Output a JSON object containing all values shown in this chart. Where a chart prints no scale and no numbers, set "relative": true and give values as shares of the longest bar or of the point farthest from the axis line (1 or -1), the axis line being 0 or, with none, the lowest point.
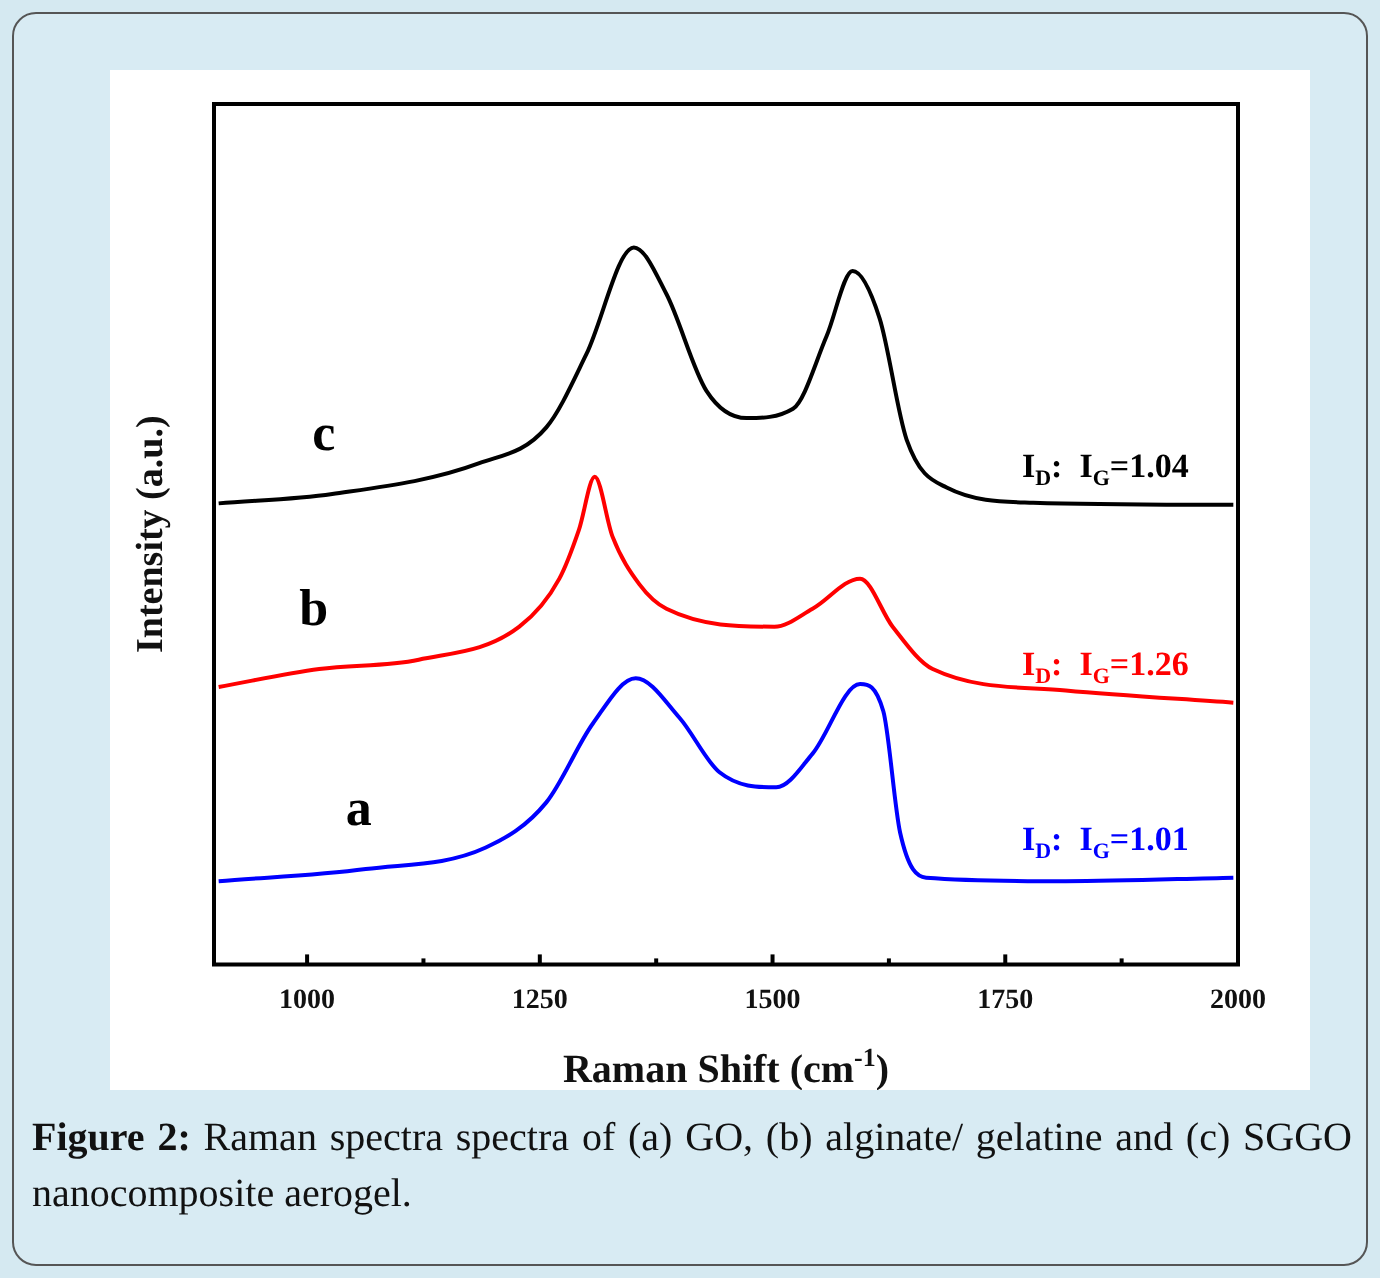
{
  "chart_data": {
    "type": "line",
    "relative": true,
    "xlabel": "Raman Shift (cm$^{-1}$)",
    "ylabel": "Intensity (a.u.)",
    "xlim": [
      900,
      2000
    ],
    "xticks": [
      1000,
      {
        "value": 1125,
        "label": null
      },
      1250,
      {
        "value": 1375,
        "label": null
      },
      1500,
      {
        "value": 1625,
        "label": null
      },
      1750,
      {
        "value": 1875,
        "label": null
      },
      2000
    ],
    "grid": false,
    "legend": false,
    "marker": "none",
    "line_style": "solid",
    "series": [
      {
        "name": "a",
        "color": "#0000ff",
        "x": [
          905,
          1063,
          1192,
          1257,
          1307,
          1353,
          1400,
          1443,
          1504,
          1543,
          1594,
          1619,
          1637,
          1665,
          1815,
          1995
        ],
        "values": [
          0.116,
          0.133,
          0.163,
          0.226,
          0.336,
          0.399,
          0.344,
          0.268,
          0.247,
          0.294,
          0.391,
          0.353,
          0.184,
          0.121,
          0.116,
          0.121
        ]
      },
      {
        "name": "b",
        "color": "#ff0000",
        "x": [
          905,
          1013,
          1120,
          1228,
          1271,
          1292,
          1309,
          1328,
          1357,
          1386,
          1502,
          1543,
          1594,
          1629,
          1672,
          1815,
          1995
        ],
        "values": [
          0.387,
          0.412,
          0.425,
          0.471,
          0.538,
          0.606,
          0.68,
          0.597,
          0.53,
          0.496,
          0.471,
          0.496,
          0.538,
          0.471,
          0.412,
          0.382,
          0.365
        ]
      },
      {
        "name": "c",
        "color": "#000000",
        "x": [
          905,
          1027,
          1185,
          1257,
          1300,
          1351,
          1386,
          1429,
          1472,
          1522,
          1558,
          1586,
          1615,
          1644,
          1687,
          1780,
          1995
        ],
        "values": [
          0.643,
          0.656,
          0.699,
          0.749,
          0.851,
          1.0,
          0.935,
          0.8,
          0.762,
          0.775,
          0.876,
          0.967,
          0.901,
          0.732,
          0.665,
          0.644,
          0.641
        ]
      }
    ],
    "annotations": [
      "I$_{D}$:  I$_{G}$=1.01",
      "I$_{D}$:  I$_{G}$=1.26",
      "I$_{D}$:  I$_{G}$=1.04",
      "Figure 2: Raman spectra spectra of (a) GO, (b) alginate/ gelatine and (c) SGGO nanocomposite aerogel."
    ]
  }
}
